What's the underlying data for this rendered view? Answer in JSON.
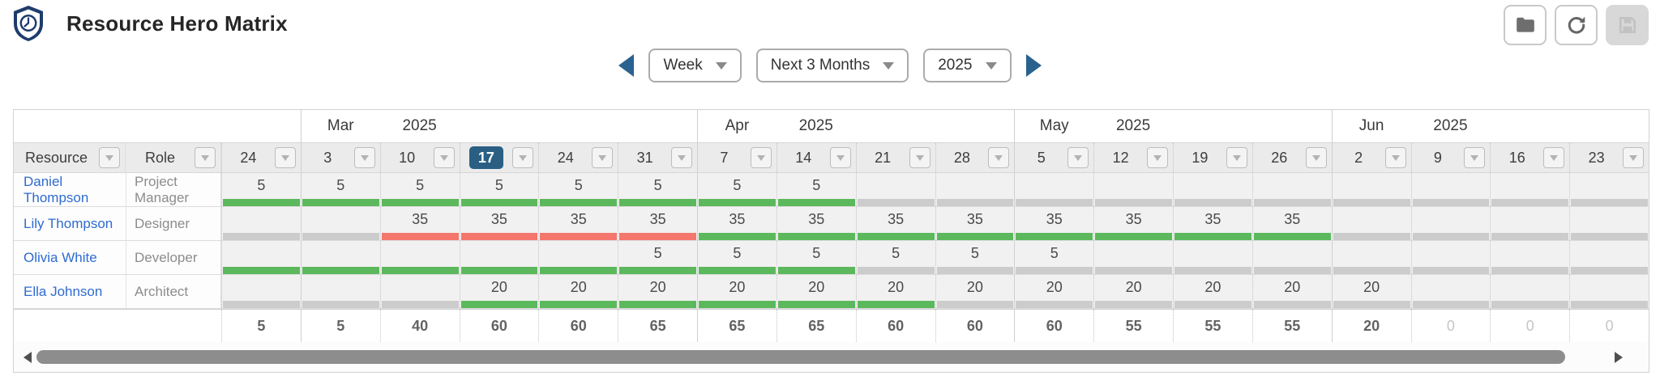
{
  "app": {
    "title": "Resource Hero Matrix"
  },
  "header_actions": {
    "buttons": [
      {
        "id": "open",
        "icon": "folder-icon",
        "disabled": false
      },
      {
        "id": "refresh",
        "icon": "refresh-icon",
        "disabled": false
      },
      {
        "id": "save",
        "icon": "save-icon",
        "disabled": true
      }
    ]
  },
  "controls": {
    "view_selector": "Week",
    "range_selector": "Next 3 Months",
    "year_selector": "2025"
  },
  "grid": {
    "resource_header": "Resource",
    "role_header": "Role",
    "months": [
      {
        "label": "Mar",
        "year": "2025",
        "label_col": 1,
        "year_col": 2
      },
      {
        "label": "Apr",
        "year": "2025",
        "label_col": 6,
        "year_col": 7
      },
      {
        "label": "May",
        "year": "2025",
        "label_col": 10,
        "year_col": 11
      },
      {
        "label": "Jun",
        "year": "2025",
        "label_col": 14,
        "year_col": 15
      }
    ],
    "columns": [
      {
        "label": "24"
      },
      {
        "label": "3",
        "month_start": true
      },
      {
        "label": "10"
      },
      {
        "label": "17",
        "current": true
      },
      {
        "label": "24"
      },
      {
        "label": "31"
      },
      {
        "label": "7",
        "month_start": true
      },
      {
        "label": "14"
      },
      {
        "label": "21"
      },
      {
        "label": "28"
      },
      {
        "label": "5",
        "month_start": true
      },
      {
        "label": "12"
      },
      {
        "label": "19"
      },
      {
        "label": "26"
      },
      {
        "label": "2",
        "month_start": true
      },
      {
        "label": "9"
      },
      {
        "label": "16"
      },
      {
        "label": "23"
      }
    ],
    "rows": [
      {
        "resource": "Daniel Thompson",
        "role": "Project Manager",
        "values": [
          "5",
          "5",
          "5",
          "5",
          "5",
          "5",
          "5",
          "5",
          "",
          "",
          "",
          "",
          "",
          "",
          "",
          "",
          "",
          ""
        ],
        "bars": [
          "green",
          "green",
          "green",
          "green",
          "green",
          "green",
          "green",
          "green",
          "gray",
          "gray",
          "gray",
          "gray",
          "gray",
          "gray",
          "gray",
          "gray",
          "gray",
          "gray"
        ]
      },
      {
        "resource": "Lily Thompson",
        "role": "Designer",
        "values": [
          "",
          "",
          "35",
          "35",
          "35",
          "35",
          "35",
          "35",
          "35",
          "35",
          "35",
          "35",
          "35",
          "35",
          "",
          "",
          "",
          ""
        ],
        "bars": [
          "gray",
          "gray",
          "red",
          "red",
          "red",
          "red",
          "green",
          "green",
          "green",
          "green",
          "green",
          "green",
          "green",
          "green",
          "gray",
          "gray",
          "gray",
          "gray"
        ]
      },
      {
        "resource": "Olivia White",
        "role": "Developer",
        "values": [
          "",
          "",
          "",
          "",
          "",
          "5",
          "5",
          "5",
          "5",
          "5",
          "5",
          "",
          "",
          "",
          "",
          "",
          "",
          ""
        ],
        "bars": [
          "green",
          "green",
          "green",
          "green",
          "green",
          "green",
          "green",
          "green",
          "gray",
          "gray",
          "gray",
          "gray",
          "gray",
          "gray",
          "gray",
          "gray",
          "gray",
          "gray"
        ]
      },
      {
        "resource": "Ella Johnson",
        "role": "Architect",
        "values": [
          "",
          "",
          "",
          "20",
          "20",
          "20",
          "20",
          "20",
          "20",
          "20",
          "20",
          "20",
          "20",
          "20",
          "20",
          "",
          "",
          ""
        ],
        "bars": [
          "gray",
          "gray",
          "gray",
          "green",
          "green",
          "green",
          "green",
          "green",
          "green",
          "gray",
          "gray",
          "gray",
          "gray",
          "gray",
          "gray",
          "gray",
          "gray",
          "gray"
        ]
      }
    ],
    "totals": [
      "5",
      "5",
      "40",
      "60",
      "60",
      "65",
      "65",
      "65",
      "60",
      "60",
      "60",
      "55",
      "55",
      "55",
      "20",
      "0",
      "0",
      "0"
    ]
  },
  "colors": {
    "accent_navy": "#2a5f83",
    "logo_navy": "#1e3c6b",
    "link_blue": "#2e6bd0",
    "bar_green": "#5cb85c",
    "bar_red": "#f4766c",
    "bar_gray": "#cccccc"
  }
}
